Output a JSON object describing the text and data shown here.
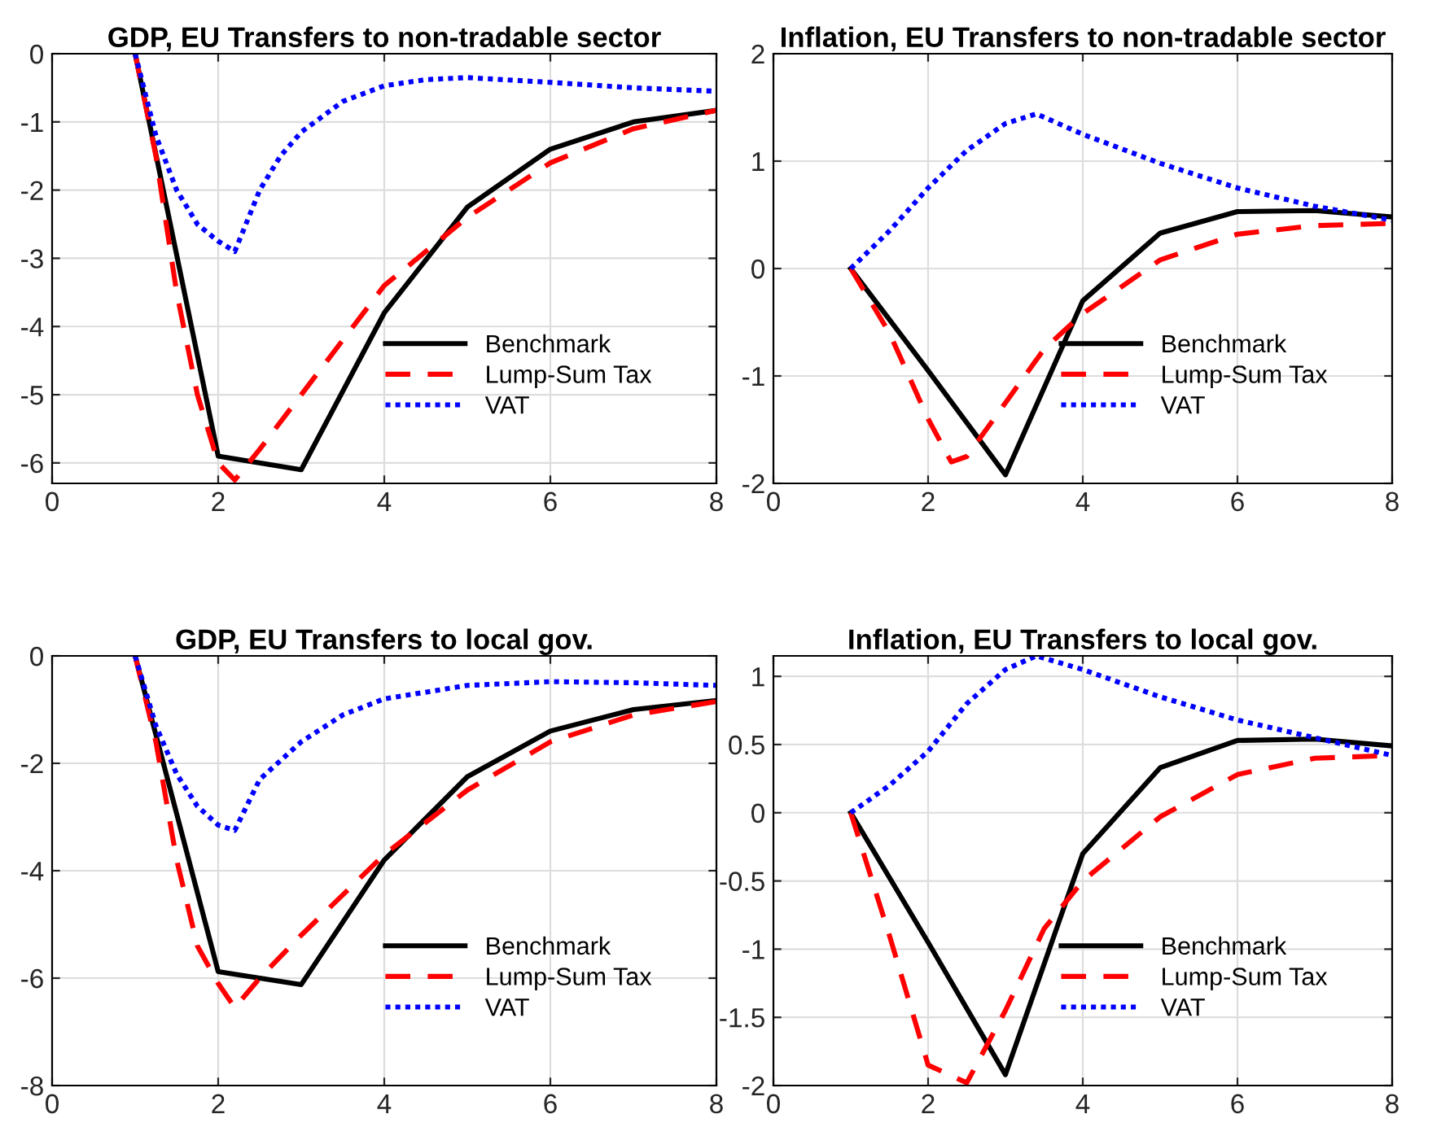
{
  "chart_data": [
    {
      "type": "line",
      "title": "GDP, EU Transfers to non-tradable sector",
      "xlim": [
        0,
        8
      ],
      "xticks": [
        0,
        2,
        4,
        6,
        8
      ],
      "ylim": [
        -6.3,
        0
      ],
      "yticks": [
        -6,
        -5,
        -4,
        -3,
        -2,
        -1,
        0
      ],
      "grid": true,
      "legend": "bottom right",
      "series": [
        {
          "name": "Benchmark",
          "color": "#000000",
          "line_style": "solid",
          "x": [
            1,
            2,
            3,
            4,
            5,
            6,
            7,
            8
          ],
          "values": [
            0,
            -5.9,
            -6.1,
            -3.8,
            -2.25,
            -1.4,
            -1.0,
            -0.83
          ]
        },
        {
          "name": "Lump-Sum Tax",
          "color": "#ff0000",
          "line_style": "dashed",
          "x": [
            1,
            1.25,
            1.5,
            1.75,
            2,
            2.2,
            2.5,
            3,
            3.5,
            4,
            5,
            6,
            7,
            8
          ],
          "values": [
            0,
            -1.5,
            -3.5,
            -5.0,
            -6.0,
            -6.25,
            -5.8,
            -5.0,
            -4.2,
            -3.4,
            -2.4,
            -1.6,
            -1.1,
            -0.83
          ]
        },
        {
          "name": "VAT",
          "color": "#0000ff",
          "line_style": "dotted",
          "x": [
            1,
            1.25,
            1.5,
            1.75,
            2,
            2.2,
            2.5,
            2.75,
            3,
            3.5,
            4,
            4.5,
            5,
            6,
            7,
            8
          ],
          "values": [
            0,
            -1.2,
            -2.0,
            -2.5,
            -2.75,
            -2.9,
            -2.0,
            -1.5,
            -1.15,
            -0.7,
            -0.47,
            -0.38,
            -0.35,
            -0.42,
            -0.5,
            -0.55
          ]
        }
      ]
    },
    {
      "type": "line",
      "title": "Inflation, EU Transfers to non-tradable sector",
      "xlim": [
        0,
        8
      ],
      "xticks": [
        0,
        2,
        4,
        6,
        8
      ],
      "ylim": [
        -2,
        2
      ],
      "yticks": [
        -2,
        -1,
        0,
        1,
        2
      ],
      "grid": true,
      "legend": "bottom right",
      "series": [
        {
          "name": "Benchmark",
          "color": "#000000",
          "line_style": "solid",
          "x": [
            1,
            2,
            3,
            4,
            5,
            6,
            7,
            8
          ],
          "values": [
            0,
            -0.95,
            -1.92,
            -0.3,
            0.33,
            0.53,
            0.54,
            0.48
          ]
        },
        {
          "name": "Lump-Sum Tax",
          "color": "#ff0000",
          "line_style": "dashed",
          "x": [
            1,
            1.5,
            2,
            2.3,
            2.5,
            3,
            3.5,
            4,
            5,
            6,
            7,
            8
          ],
          "values": [
            0,
            -0.6,
            -1.4,
            -1.8,
            -1.75,
            -1.25,
            -0.75,
            -0.42,
            0.08,
            0.32,
            0.4,
            0.42
          ]
        },
        {
          "name": "VAT",
          "color": "#0000ff",
          "line_style": "dotted",
          "x": [
            1,
            1.5,
            2,
            2.5,
            3,
            3.4,
            4,
            5,
            6,
            7,
            8
          ],
          "values": [
            0,
            0.35,
            0.75,
            1.1,
            1.35,
            1.44,
            1.25,
            0.98,
            0.75,
            0.58,
            0.45
          ]
        }
      ]
    },
    {
      "type": "line",
      "title": "GDP, EU Transfers to local gov.",
      "xlim": [
        0,
        8
      ],
      "xticks": [
        0,
        2,
        4,
        6,
        8
      ],
      "ylim": [
        -8,
        0
      ],
      "yticks": [
        -8,
        -6,
        -4,
        -2,
        0
      ],
      "grid": true,
      "legend": "bottom right",
      "series": [
        {
          "name": "Benchmark",
          "color": "#000000",
          "line_style": "solid",
          "x": [
            1,
            2,
            3,
            4,
            5,
            6,
            7,
            8
          ],
          "values": [
            0,
            -5.88,
            -6.12,
            -3.8,
            -2.25,
            -1.4,
            -1.0,
            -0.83
          ]
        },
        {
          "name": "Lump-Sum Tax",
          "color": "#ff0000",
          "line_style": "dashed",
          "x": [
            1,
            1.25,
            1.5,
            1.75,
            2,
            2.2,
            2.5,
            3,
            4,
            5,
            6,
            7,
            8
          ],
          "values": [
            0,
            -1.6,
            -3.8,
            -5.4,
            -6.1,
            -6.55,
            -6.0,
            -5.2,
            -3.7,
            -2.5,
            -1.6,
            -1.1,
            -0.85
          ]
        },
        {
          "name": "VAT",
          "color": "#0000ff",
          "line_style": "dotted",
          "x": [
            1,
            1.25,
            1.5,
            1.75,
            2,
            2.2,
            2.5,
            3,
            3.5,
            4,
            5,
            6,
            7,
            8
          ],
          "values": [
            0,
            -1.3,
            -2.2,
            -2.8,
            -3.15,
            -3.25,
            -2.3,
            -1.6,
            -1.1,
            -0.8,
            -0.55,
            -0.48,
            -0.5,
            -0.55
          ]
        }
      ]
    },
    {
      "type": "line",
      "title": "Inflation, EU Transfers to local gov.",
      "xlim": [
        0,
        8
      ],
      "xticks": [
        0,
        2,
        4,
        6,
        8
      ],
      "ylim": [
        -2,
        1.15
      ],
      "yticks": [
        -2,
        -1.5,
        -1,
        -0.5,
        0,
        0.5,
        1
      ],
      "grid": true,
      "legend": "bottom right",
      "series": [
        {
          "name": "Benchmark",
          "color": "#000000",
          "line_style": "solid",
          "x": [
            1,
            2,
            3,
            4,
            5,
            6,
            7,
            8
          ],
          "values": [
            0,
            -0.95,
            -1.92,
            -0.3,
            0.33,
            0.53,
            0.54,
            0.49
          ]
        },
        {
          "name": "Lump-Sum Tax",
          "color": "#ff0000",
          "line_style": "dashed",
          "x": [
            1,
            1.5,
            2,
            2.5,
            3,
            3.5,
            4,
            5,
            6,
            7,
            8
          ],
          "values": [
            0,
            -0.9,
            -1.85,
            -1.98,
            -1.45,
            -0.85,
            -0.5,
            -0.03,
            0.28,
            0.4,
            0.42
          ]
        },
        {
          "name": "VAT",
          "color": "#0000ff",
          "line_style": "dotted",
          "x": [
            1,
            1.5,
            2,
            2.5,
            3,
            3.4,
            4,
            5,
            6,
            7,
            8
          ],
          "values": [
            0,
            0.2,
            0.45,
            0.8,
            1.05,
            1.15,
            1.05,
            0.85,
            0.68,
            0.55,
            0.42
          ]
        }
      ]
    }
  ]
}
